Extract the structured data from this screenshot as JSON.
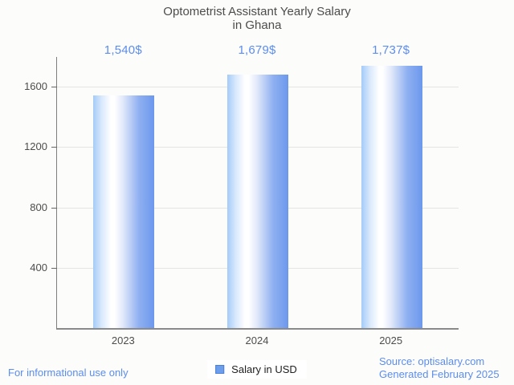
{
  "title": {
    "line1": "Optometrist Assistant Yearly Salary",
    "line2": "in Ghana"
  },
  "legend": {
    "label": "Salary in USD",
    "marker_color": "#6d9eeb"
  },
  "footer": {
    "disclaimer": "For informational use only",
    "source_line1": "Source: optisalary.com",
    "source_line2": "Generated February 2025"
  },
  "colors": {
    "background": "#fcfcfa",
    "value_label_blue": "#5c8def",
    "footer_blue": "#5b8def",
    "bar_gradient_left": "#a3cbf8",
    "bar_gradient_mid": "#ffffff",
    "bar_gradient_right": "#6c98ec",
    "axis_gray": "#8a8a8a",
    "gridline_gray": "#e5e5e2",
    "text_dark": "#4d4d4d"
  },
  "chart_data": {
    "type": "bar",
    "title": "Optometrist Assistant Yearly Salary in Ghana",
    "categories": [
      "2023",
      "2024",
      "2025"
    ],
    "values": [
      1540,
      1679,
      1737
    ],
    "value_labels": [
      "1,540$",
      "1,679$",
      "1,737$"
    ],
    "series_name": "Salary in USD",
    "xlabel": "",
    "ylabel": "",
    "yticks": [
      400,
      800,
      1200,
      1600
    ],
    "ylim": [
      0,
      1797
    ],
    "grid": true,
    "legend_position": "bottom"
  }
}
